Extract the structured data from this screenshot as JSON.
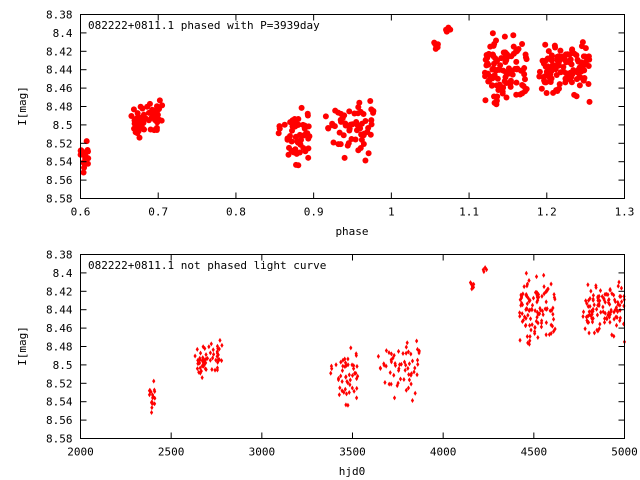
{
  "chart_data": [
    {
      "type": "scatter",
      "title": "082222+0811.1 phased with P=3939day",
      "xlabel": "phase",
      "ylabel": "I[mag]",
      "xlim": [
        0.6,
        1.3
      ],
      "ylim": [
        8.58,
        8.38
      ],
      "y_inverted": true,
      "grid": false,
      "x_ticks": [
        "0.6",
        "0.7",
        "0.8",
        "0.9",
        "1",
        "1.1",
        "1.2",
        "1.3"
      ],
      "y_ticks": [
        "8.38",
        "8.4",
        "8.42",
        "8.44",
        "8.46",
        "8.48",
        "8.5",
        "8.52",
        "8.54",
        "8.56",
        "8.58"
      ],
      "marker": "filled-circle",
      "marker_color": "#ff0000",
      "series": [
        {
          "clusters": [
            {
              "x_range": [
                0.6,
                0.61
              ],
              "y_range": [
                8.503,
                8.566
              ],
              "n": 18
            },
            {
              "x_range": [
                0.665,
                0.705
              ],
              "y_range": [
                8.466,
                8.522
              ],
              "n": 60
            },
            {
              "x_range": [
                0.855,
                0.895
              ],
              "y_range": [
                8.47,
                8.556
              ],
              "n": 50
            },
            {
              "x_range": [
                0.915,
                0.98
              ],
              "y_range": [
                8.456,
                8.545
              ],
              "n": 60
            },
            {
              "x_range": [
                1.055,
                1.063
              ],
              "y_range": [
                8.403,
                8.422
              ],
              "n": 8
            },
            {
              "x_range": [
                1.07,
                1.076
              ],
              "y_range": [
                8.382,
                8.403
              ],
              "n": 4
            },
            {
              "x_range": [
                1.12,
                1.175
              ],
              "y_range": [
                8.39,
                8.493
              ],
              "n": 110
            },
            {
              "x_range": [
                1.19,
                1.255
              ],
              "y_range": [
                8.395,
                8.481
              ],
              "n": 110
            }
          ]
        }
      ]
    },
    {
      "type": "scatter",
      "title": "082222+0811.1 not phased light curve",
      "xlabel": "hjd0",
      "ylabel": "I[mag]",
      "xlim": [
        2000,
        5000
      ],
      "ylim": [
        8.58,
        8.38
      ],
      "y_inverted": true,
      "grid": false,
      "x_ticks": [
        "2000",
        "2500",
        "3000",
        "3500",
        "4000",
        "4500",
        "5000"
      ],
      "y_ticks": [
        "8.38",
        "8.4",
        "8.42",
        "8.44",
        "8.46",
        "8.48",
        "8.5",
        "8.52",
        "8.54",
        "8.56",
        "8.58"
      ],
      "marker": "diamond",
      "marker_color": "#ff0000",
      "series": [
        {
          "clusters": [
            {
              "x_range": [
                2380,
                2410
              ],
              "y_range": [
                8.503,
                8.566
              ],
              "n": 18
            },
            {
              "x_range": [
                2630,
                2780
              ],
              "y_range": [
                8.466,
                8.522
              ],
              "n": 60
            },
            {
              "x_range": [
                3380,
                3530
              ],
              "y_range": [
                8.47,
                8.556
              ],
              "n": 50
            },
            {
              "x_range": [
                3640,
                3880
              ],
              "y_range": [
                8.456,
                8.545
              ],
              "n": 60
            },
            {
              "x_range": [
                4150,
                4180
              ],
              "y_range": [
                8.403,
                8.422
              ],
              "n": 8
            },
            {
              "x_range": [
                4220,
                4240
              ],
              "y_range": [
                8.382,
                8.403
              ],
              "n": 4
            },
            {
              "x_range": [
                4420,
                4620
              ],
              "y_range": [
                8.39,
                8.493
              ],
              "n": 110
            },
            {
              "x_range": [
                4770,
                5000
              ],
              "y_range": [
                8.395,
                8.481
              ],
              "n": 110
            }
          ]
        }
      ]
    }
  ]
}
